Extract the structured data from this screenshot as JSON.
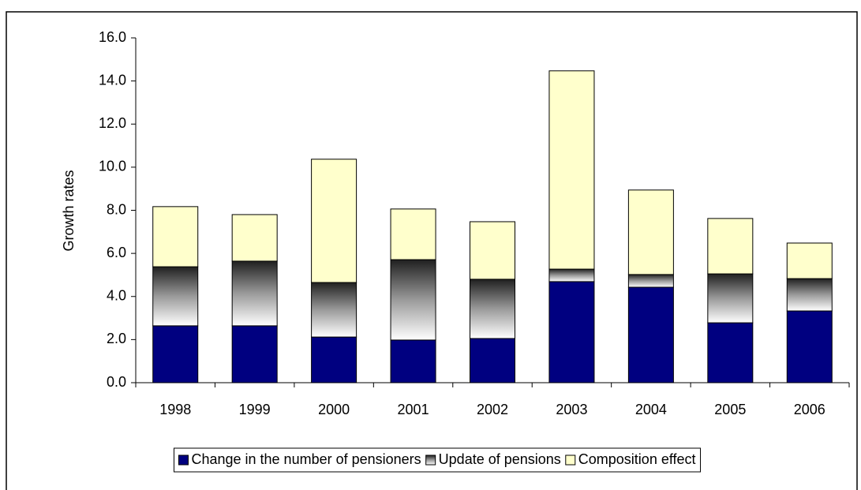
{
  "chart_data": {
    "type": "stacked_bar",
    "y_label": "Growth rates",
    "categories": [
      "1998",
      "1999",
      "2000",
      "2001",
      "2002",
      "2003",
      "2004",
      "2005",
      "2006"
    ],
    "series": [
      {
        "name": "Change in the number of pensioners",
        "color": "#000080",
        "values": [
          2.64,
          2.64,
          2.12,
          1.98,
          2.05,
          4.69,
          4.43,
          2.78,
          3.33
        ]
      },
      {
        "name": "Update of pensions",
        "color": "#808080",
        "gradient": true,
        "values": [
          2.74,
          3.0,
          2.53,
          3.73,
          2.75,
          0.58,
          0.59,
          2.27,
          1.5
        ]
      },
      {
        "name": "Composition effect",
        "color": "#ffffcc",
        "values": [
          2.79,
          2.16,
          5.72,
          2.35,
          2.67,
          9.2,
          3.92,
          2.57,
          1.65
        ]
      }
    ],
    "ylim": [
      0,
      16
    ],
    "yticks": [
      {
        "value": 0,
        "label": "0.0"
      },
      {
        "value": 2,
        "label": "2.0"
      },
      {
        "value": 4,
        "label": "4.0"
      },
      {
        "value": 6,
        "label": "6.0"
      },
      {
        "value": 8,
        "label": "8.0"
      },
      {
        "value": 10,
        "label": "10.0"
      },
      {
        "value": 12,
        "label": "12.0"
      },
      {
        "value": 14,
        "label": "14.0"
      },
      {
        "value": 16,
        "label": "16.0"
      }
    ],
    "grid": false,
    "legend": "bottom"
  }
}
